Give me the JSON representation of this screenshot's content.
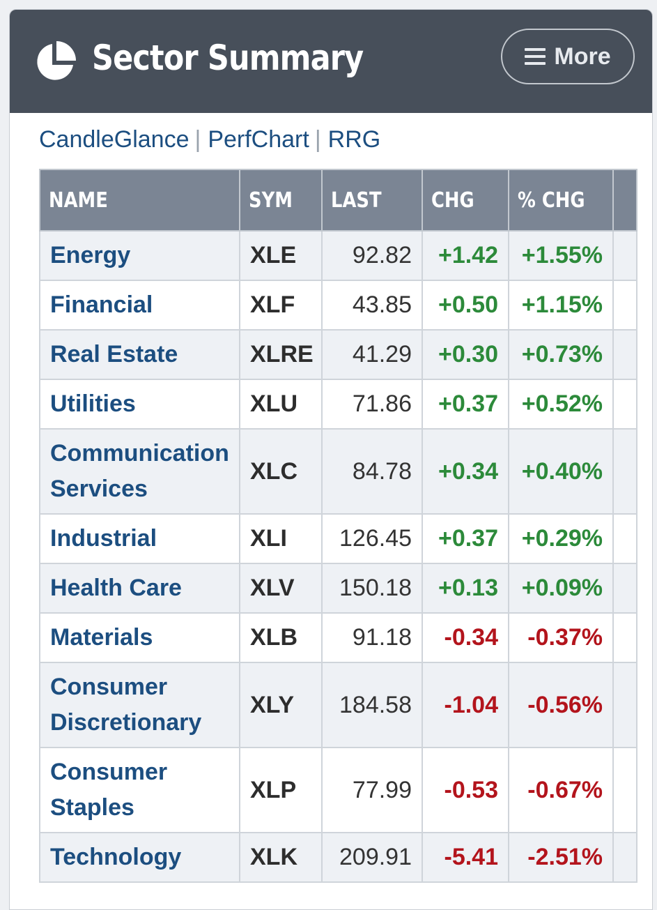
{
  "header": {
    "title": "Sector Summary",
    "more_label": "More"
  },
  "links": [
    "CandleGlance",
    "PerfChart",
    "RRG"
  ],
  "colors": {
    "header_bg": "#474f5a",
    "table_header_bg": "#7b8594",
    "link": "#1c4e80",
    "positive": "#2c8a3a",
    "negative": "#b3141c"
  },
  "table": {
    "columns": [
      "NAME",
      "SYM",
      "LAST",
      "CHG",
      "% CHG",
      ""
    ],
    "rows": [
      {
        "name": "Energy",
        "sym": "XLE",
        "last": "92.82",
        "chg": "+1.42",
        "pct": "+1.55%",
        "trend": "up"
      },
      {
        "name": "Financial",
        "sym": "XLF",
        "last": "43.85",
        "chg": "+0.50",
        "pct": "+1.15%",
        "trend": "up"
      },
      {
        "name": "Real Estate",
        "sym": "XLRE",
        "last": "41.29",
        "chg": "+0.30",
        "pct": "+0.73%",
        "trend": "up"
      },
      {
        "name": "Utilities",
        "sym": "XLU",
        "last": "71.86",
        "chg": "+0.37",
        "pct": "+0.52%",
        "trend": "up"
      },
      {
        "name": "Communication Services",
        "sym": "XLC",
        "last": "84.78",
        "chg": "+0.34",
        "pct": "+0.40%",
        "trend": "up"
      },
      {
        "name": "Industrial",
        "sym": "XLI",
        "last": "126.45",
        "chg": "+0.37",
        "pct": "+0.29%",
        "trend": "up"
      },
      {
        "name": "Health Care",
        "sym": "XLV",
        "last": "150.18",
        "chg": "+0.13",
        "pct": "+0.09%",
        "trend": "up"
      },
      {
        "name": "Materials",
        "sym": "XLB",
        "last": "91.18",
        "chg": "-0.34",
        "pct": "-0.37%",
        "trend": "down"
      },
      {
        "name": "Consumer Discretionary",
        "sym": "XLY",
        "last": "184.58",
        "chg": "-1.04",
        "pct": "-0.56%",
        "trend": "down"
      },
      {
        "name": "Consumer Staples",
        "sym": "XLP",
        "last": "77.99",
        "chg": "-0.53",
        "pct": "-0.67%",
        "trend": "down"
      },
      {
        "name": "Technology",
        "sym": "XLK",
        "last": "209.91",
        "chg": "-5.41",
        "pct": "-2.51%",
        "trend": "down"
      }
    ]
  }
}
